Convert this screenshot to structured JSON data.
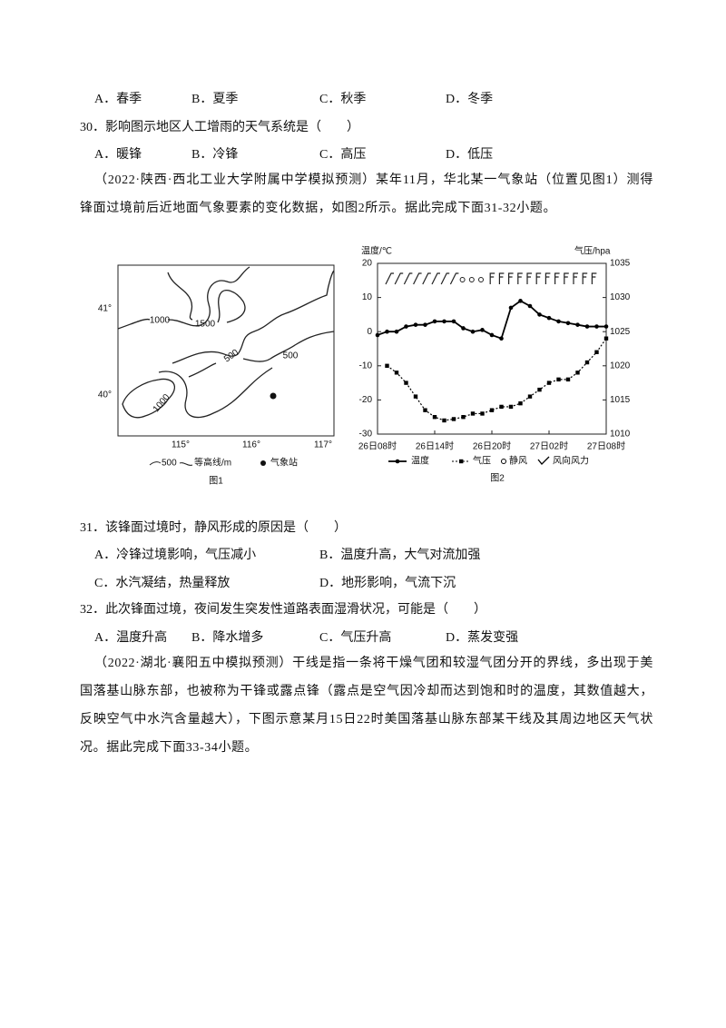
{
  "q29": {
    "options": [
      "A．春季",
      "B．夏季",
      "C．秋季",
      "D．冬季"
    ]
  },
  "q30": {
    "stem": "30．影响图示地区人工增雨的天气系统是（　　）",
    "options": [
      "A．暖锋",
      "B．冷锋",
      "C．高压",
      "D．低压"
    ]
  },
  "passage1": "（2022·陕西·西北工业大学附属中学模拟预测）某年11月，华北某一气象站（位置见图1）测得锋面过境前后近地面气象要素的变化数据，如图2所示。据此完成下面31-32小题。",
  "figure1": {
    "caption": "图1",
    "lat_labels": [
      "41°",
      "40°"
    ],
    "lon_labels": [
      "115°",
      "116°",
      "117°"
    ],
    "contour_labels": [
      "1000",
      "1500",
      "500",
      "500",
      "1000"
    ],
    "legend": {
      "contour_value": "500",
      "contour": "等高线/m",
      "station": "气象站"
    }
  },
  "chart_data": {
    "type": "line",
    "caption": "图2",
    "y_label": "温度/℃",
    "y2_label": "气压/hpa",
    "categories": [
      "26日08时",
      null,
      null,
      null,
      null,
      null,
      "26日14时",
      null,
      null,
      null,
      null,
      null,
      "26日20时",
      null,
      null,
      null,
      null,
      null,
      "27日02时",
      null,
      null,
      null,
      null,
      null,
      "27日08时"
    ],
    "ylim": [
      -30,
      20
    ],
    "yticks": [
      -30,
      -20,
      -10,
      0,
      10,
      20
    ],
    "y2lim": [
      1010,
      1035
    ],
    "y2ticks": [
      1010,
      1015,
      1020,
      1025,
      1030,
      1035
    ],
    "series": [
      {
        "name": "温度",
        "color": "#000000",
        "values": [
          -1,
          0,
          0,
          1.5,
          2,
          2,
          3,
          3,
          3,
          1,
          0,
          0.5,
          -1,
          -2,
          7,
          9,
          7.5,
          5,
          4,
          3,
          2.5,
          2,
          1.5,
          1.5,
          1.5
        ]
      },
      {
        "name": "气压",
        "color": "#000000",
        "axis": "y2",
        "values": [
          null,
          1020,
          1019,
          1017.5,
          1015.5,
          1013.5,
          1012.5,
          1012,
          1012.2,
          1012.5,
          1013,
          1013,
          1013.5,
          1014,
          1014,
          1014.5,
          1015.5,
          1016.5,
          1017.5,
          1018,
          1018,
          1019,
          1020.5,
          1022,
          1024
        ]
      }
    ],
    "legend_extra": [
      "静风",
      "风向风力"
    ]
  },
  "q31": {
    "stem": "31．该锋面过境时，静风形成的原因是（　　）",
    "options": [
      "A．冷锋过境影响，气压减小",
      "B．温度升高，大气对流加强",
      "C．水汽凝结，热量释放",
      "D．地形影响，气流下沉"
    ]
  },
  "q32": {
    "stem": "32．此次锋面过境，夜间发生突发性道路表面湿滑状况，可能是（　　）",
    "options": [
      "A．温度升高",
      "B．降水增多",
      "C．气压升高",
      "D．蒸发变强"
    ]
  },
  "passage2": "（2022·湖北·襄阳五中模拟预测）干线是指一条将干燥气团和较湿气团分开的界线，多出现于美国落基山脉东部，也被称为干锋或露点锋（露点是空气因冷却而达到饱和时的温度，其数值越大，反映空气中水汽含量越大），下图示意某月15日22时美国落基山脉东部某干线及其周边地区天气状况。据此完成下面33-34小题。"
}
